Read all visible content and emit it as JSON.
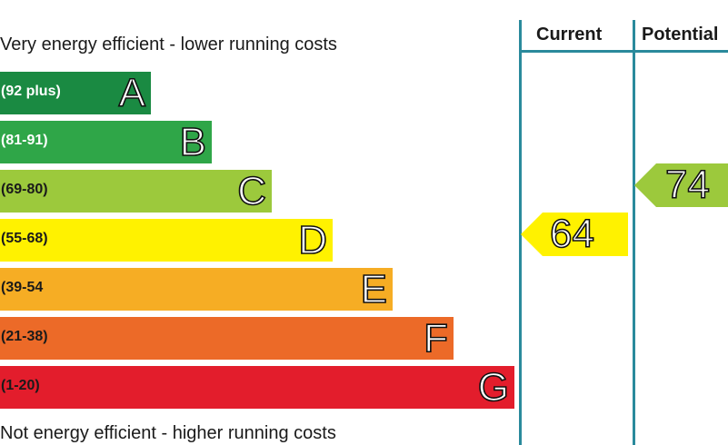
{
  "chart_data": {
    "type": "bar",
    "top_caption": "Very energy efficient - lower running costs",
    "bottom_caption": "Not energy efficient - higher running costs",
    "columns": [
      "Current",
      "Potential"
    ],
    "bands": [
      {
        "letter": "A",
        "range": "(92 plus)",
        "color": "#1a8a42",
        "range_color": "#ffffff"
      },
      {
        "letter": "B",
        "range": "(81-91)",
        "color": "#2fa648",
        "range_color": "#ffffff"
      },
      {
        "letter": "C",
        "range": "(69-80)",
        "color": "#9cc93c",
        "range_color": "#1a1a1a"
      },
      {
        "letter": "D",
        "range": "(55-68)",
        "color": "#fff200",
        "range_color": "#1a1a1a"
      },
      {
        "letter": "E",
        "range": "(39-54",
        "color": "#f6ad24",
        "range_color": "#1a1a1a"
      },
      {
        "letter": "F",
        "range": "(21-38)",
        "color": "#ec6a28",
        "range_color": "#1a1a1a"
      },
      {
        "letter": "G",
        "range": "(1-20)",
        "color": "#e31d2c",
        "range_color": "#1a1a1a"
      }
    ],
    "ratings": {
      "current": {
        "value": "64",
        "band": "D",
        "color": "#fff200"
      },
      "potential": {
        "value": "74",
        "band": "C",
        "color": "#9cc93c"
      }
    }
  }
}
